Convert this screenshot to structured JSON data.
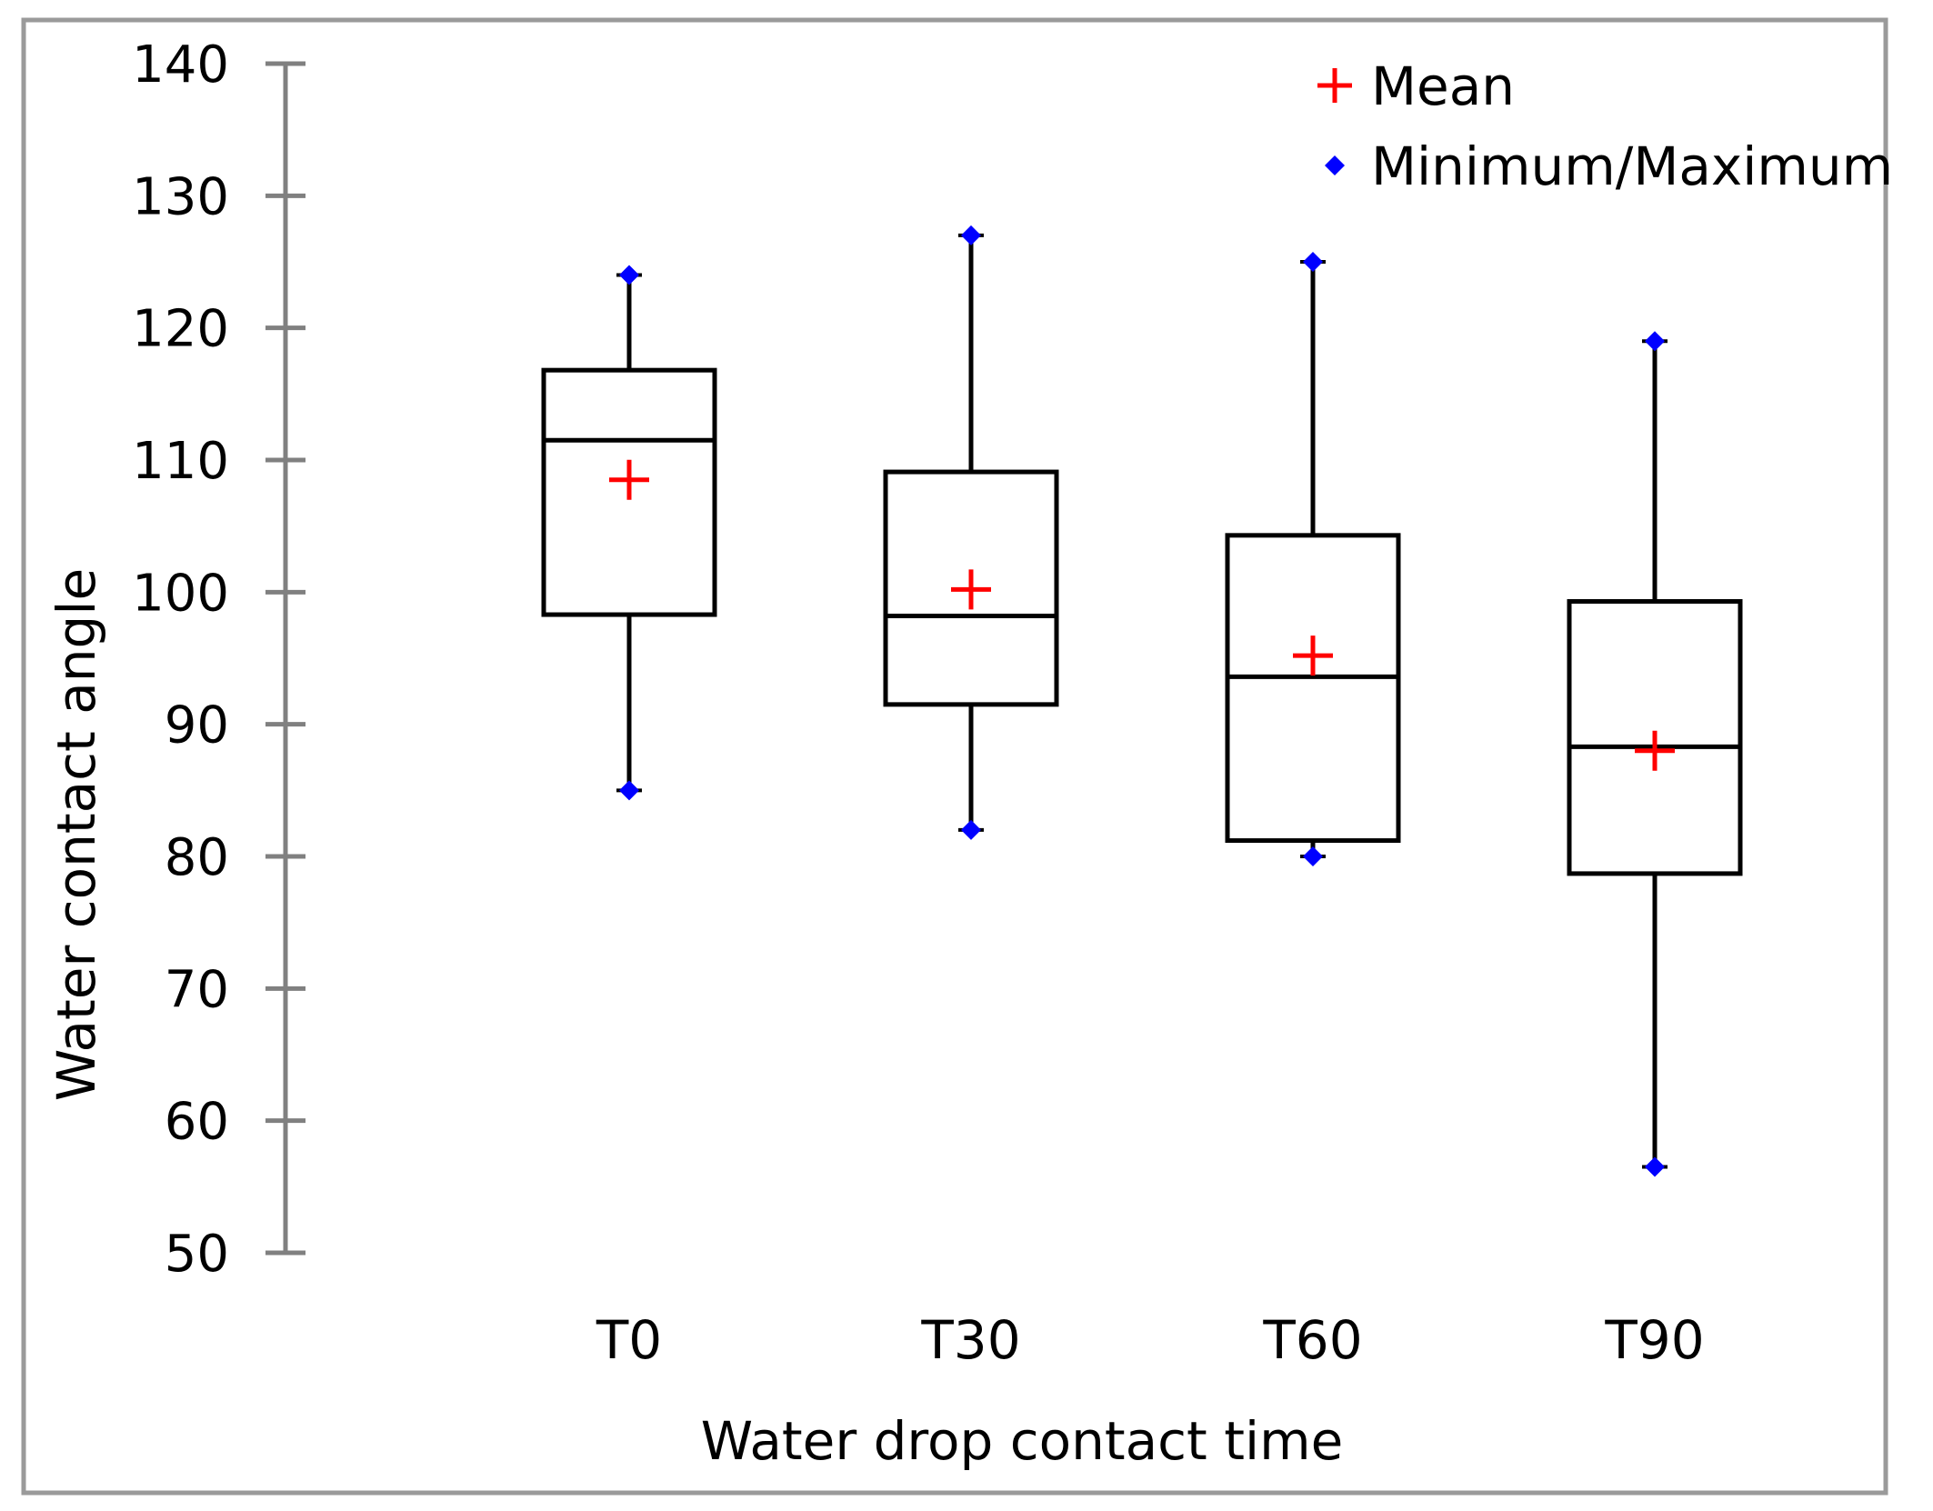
{
  "chart_data": {
    "type": "boxplot",
    "title": "",
    "xlabel": "Water drop contact time",
    "ylabel": "Water contact angle",
    "ylim": [
      50,
      140
    ],
    "yticks": [
      50,
      60,
      70,
      80,
      90,
      100,
      110,
      120,
      130,
      140
    ],
    "grid": false,
    "legend_position": "top-right",
    "categories": [
      "T0",
      "T30",
      "T60",
      "T90"
    ],
    "boxes": [
      {
        "category": "T0",
        "min": 85,
        "q1": 98.3,
        "median": 111.5,
        "q3": 116.8,
        "max": 124,
        "mean": 108.5
      },
      {
        "category": "T30",
        "min": 82,
        "q1": 91.5,
        "median": 98.2,
        "q3": 109.1,
        "max": 127,
        "mean": 100.2
      },
      {
        "category": "T60",
        "min": 80,
        "q1": 81.2,
        "median": 93.6,
        "q3": 104.3,
        "max": 125,
        "mean": 95.2
      },
      {
        "category": "T90",
        "min": 56.5,
        "q1": 78.7,
        "median": 88.3,
        "q3": 99.3,
        "max": 119,
        "mean": 88.0
      }
    ],
    "legend": [
      {
        "label": "Mean",
        "marker": "plus"
      },
      {
        "label": "Minimum/Maximum",
        "marker": "diamond"
      }
    ]
  },
  "colors": {
    "mean": "#ff0000",
    "minmax": "#0000ff",
    "box": "#000000",
    "axis": "#808080",
    "frame": "#9a9a9a"
  }
}
